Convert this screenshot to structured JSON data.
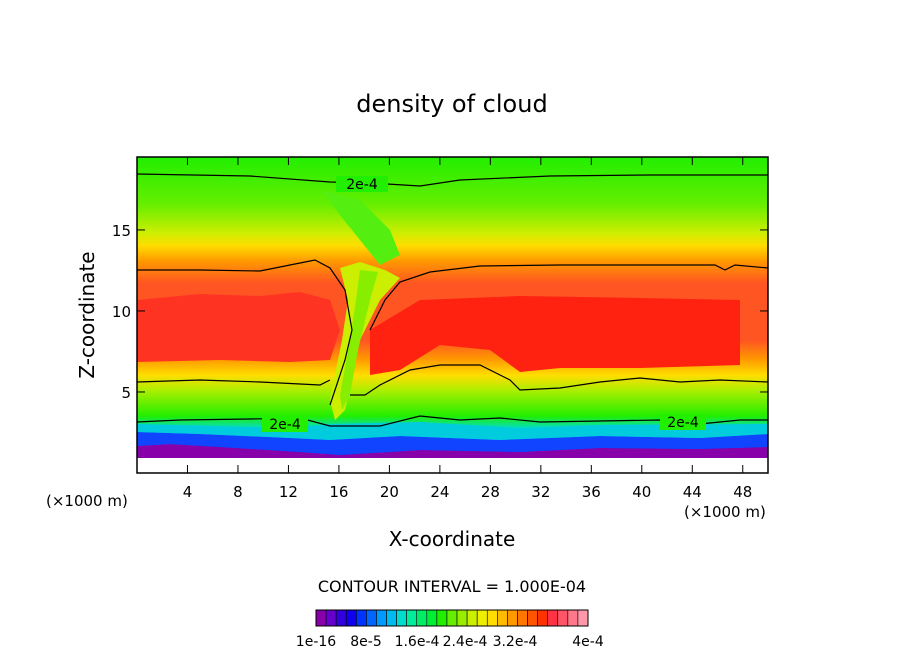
{
  "chart_data": {
    "type": "heatmap",
    "title": "density of cloud",
    "xlabel": "X-coordinate",
    "ylabel": "Z-coordinate",
    "x_unit_left": "(×1000 m)",
    "x_unit_right": "(×1000 m)",
    "xlim": [
      0,
      50
    ],
    "ylim": [
      0,
      19.5
    ],
    "x_ticks": [
      "4",
      "8",
      "12",
      "16",
      "20",
      "24",
      "28",
      "32",
      "36",
      "40",
      "44",
      "48"
    ],
    "y_ticks": [
      "5",
      "10",
      "15"
    ],
    "contour_interval_label": "CONTOUR INTERVAL = 1.000E-04",
    "contour_labels": [
      "2e-4",
      "2e-4",
      "2e-4"
    ],
    "colorbar": {
      "tick_labels": [
        "1e-16",
        "8e-5",
        "1.6e-4",
        "2.4e-4",
        "3.2e-4",
        "4e-4"
      ],
      "colors": [
        "#8800aa",
        "#6600cc",
        "#3300dd",
        "#1100ee",
        "#0033ff",
        "#0066ff",
        "#0099ff",
        "#00bbee",
        "#00ddcc",
        "#00ee99",
        "#00ee66",
        "#00ee33",
        "#22ee00",
        "#66ee00",
        "#99ee00",
        "#ccee00",
        "#eeee00",
        "#ffdd00",
        "#ffbb00",
        "#ff9900",
        "#ff7700",
        "#ff5500",
        "#ff3300",
        "#ff3344",
        "#ff5566",
        "#ff7788",
        "#ff99aa"
      ]
    },
    "grid": false
  }
}
